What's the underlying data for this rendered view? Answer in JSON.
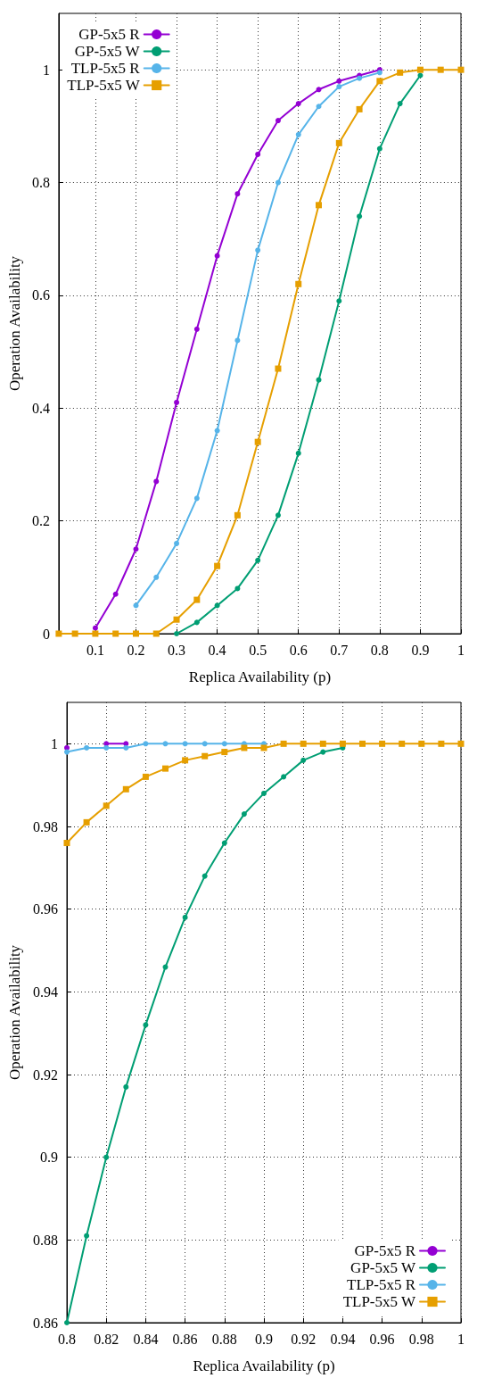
{
  "chart_data": [
    {
      "type": "line",
      "xlabel": "Replica Availability (p)",
      "ylabel": "Operation Availability",
      "x": [
        0.01,
        0.05,
        0.1,
        0.15,
        0.2,
        0.25,
        0.3,
        0.35,
        0.4,
        0.45,
        0.5,
        0.55,
        0.6,
        0.65,
        0.7,
        0.75,
        0.8,
        0.85,
        0.9,
        0.95,
        1
      ],
      "xlim": [
        0.01,
        1
      ],
      "xticks": [
        0.1,
        0.2,
        0.3,
        0.4,
        0.5,
        0.6,
        0.7,
        0.8,
        0.9,
        1
      ],
      "ylim": [
        0,
        1.1
      ],
      "yticks": [
        0,
        0.2,
        0.4,
        0.6,
        0.8,
        1
      ],
      "grid": true,
      "legend": "top left",
      "line_style": "solid",
      "series": [
        {
          "name": "GP-5x5 R",
          "color": "#9400d3",
          "marker": "circle",
          "values": [
            null,
            null,
            0.01,
            0.07,
            0.15,
            0.27,
            0.41,
            0.54,
            0.67,
            0.78,
            0.85,
            0.91,
            0.94,
            0.965,
            0.98,
            0.99,
            1,
            null,
            null,
            null,
            null
          ]
        },
        {
          "name": "GP-5x5 W",
          "color": "#009e73",
          "marker": "circle",
          "values": [
            null,
            null,
            null,
            null,
            null,
            null,
            0,
            0.02,
            0.05,
            0.08,
            0.13,
            0.21,
            0.32,
            0.45,
            0.59,
            0.74,
            0.86,
            0.94,
            0.99,
            null,
            null
          ]
        },
        {
          "name": "TLP-5x5 R",
          "color": "#56b4e9",
          "marker": "circle",
          "values": [
            null,
            null,
            null,
            null,
            0.05,
            0.1,
            0.16,
            0.24,
            0.36,
            0.52,
            0.68,
            0.8,
            0.885,
            0.935,
            0.97,
            0.985,
            0.995,
            null,
            null,
            null,
            null
          ]
        },
        {
          "name": "TLP-5x5 W",
          "color": "#e69f00",
          "marker": "square",
          "values": [
            0,
            0,
            0,
            0,
            0,
            0,
            0.025,
            0.06,
            0.12,
            0.21,
            0.34,
            0.47,
            0.62,
            0.76,
            0.87,
            0.93,
            0.98,
            0.995,
            1,
            1,
            1
          ]
        }
      ]
    },
    {
      "type": "line",
      "xlabel": "Replica Availability (p)",
      "ylabel": "Operation Availability",
      "x": [
        0.8,
        0.81,
        0.82,
        0.83,
        0.84,
        0.85,
        0.86,
        0.87,
        0.88,
        0.89,
        0.9,
        0.91,
        0.92,
        0.93,
        0.94,
        0.95,
        0.96,
        0.97,
        0.98,
        0.99,
        1
      ],
      "xlim": [
        0.8,
        1
      ],
      "xticks": [
        0.8,
        0.82,
        0.84,
        0.86,
        0.88,
        0.9,
        0.92,
        0.94,
        0.96,
        0.98,
        1
      ],
      "ylim": [
        0.86,
        1.01
      ],
      "yticks": [
        0.86,
        0.88,
        0.9,
        0.92,
        0.94,
        0.96,
        0.98,
        1
      ],
      "grid": true,
      "legend": "bottom right",
      "line_style": "solid",
      "series": [
        {
          "name": "GP-5x5 R",
          "color": "#9400d3",
          "marker": "circle",
          "values": [
            0.999,
            null,
            1,
            1,
            null,
            null,
            null,
            null,
            null,
            null,
            null,
            null,
            null,
            null,
            null,
            null,
            null,
            null,
            null,
            null,
            null
          ]
        },
        {
          "name": "GP-5x5 W",
          "color": "#009e73",
          "marker": "circle",
          "values": [
            0.86,
            0.881,
            0.9,
            0.917,
            0.932,
            0.946,
            0.958,
            0.968,
            0.976,
            0.983,
            0.988,
            0.992,
            0.996,
            0.998,
            0.999,
            null,
            null,
            null,
            null,
            null,
            null
          ]
        },
        {
          "name": "TLP-5x5 R",
          "color": "#56b4e9",
          "marker": "circle",
          "values": [
            0.998,
            0.999,
            0.999,
            0.999,
            1,
            1,
            1,
            1,
            1,
            1,
            1,
            null,
            null,
            null,
            null,
            null,
            null,
            null,
            null,
            null,
            null
          ]
        },
        {
          "name": "TLP-5x5 W",
          "color": "#e69f00",
          "marker": "square",
          "values": [
            0.976,
            0.981,
            0.985,
            0.989,
            0.992,
            0.994,
            0.996,
            0.997,
            0.998,
            0.999,
            0.999,
            1,
            1,
            1,
            1,
            1,
            1,
            1,
            1,
            1,
            1
          ]
        }
      ]
    }
  ]
}
